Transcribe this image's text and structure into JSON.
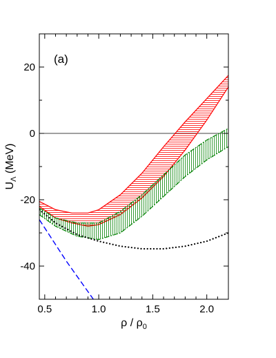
{
  "chart_data": {
    "type": "line",
    "panel_label": "(a)",
    "xlabel_main": "ρ / ρ",
    "xlabel_sub": "0",
    "ylabel_main": "U",
    "ylabel_sub": "Λ",
    "ylabel_unit": " (MeV)",
    "xlim": [
      0.45,
      2.2
    ],
    "ylim": [
      -50,
      30
    ],
    "x_ticks": [
      0.5,
      1.0,
      1.5,
      2.0
    ],
    "x_tick_labels": [
      "0.5",
      "1.0",
      "1.5",
      "2.0"
    ],
    "y_ticks": [
      -40,
      -20,
      0,
      20
    ],
    "y_tick_labels": [
      "-40",
      "-20",
      "0",
      "20"
    ],
    "zero_line": 0,
    "bands": [
      {
        "style": "red-hatched",
        "color": "#ff0000",
        "x": [
          0.45,
          0.6,
          0.75,
          0.9,
          1.0,
          1.2,
          1.4,
          1.6,
          1.8,
          2.0,
          2.2
        ],
        "upper": [
          -20.5,
          -23.0,
          -24.0,
          -24.0,
          -23.0,
          -18.5,
          -12.0,
          -4.0,
          3.5,
          10.5,
          17.5
        ],
        "lower": [
          -22.0,
          -25.5,
          -27.0,
          -28.0,
          -27.5,
          -24.5,
          -19.5,
          -13.0,
          -5.0,
          4.0,
          14.0
        ]
      },
      {
        "style": "green-hatched",
        "color": "#008000",
        "x": [
          0.45,
          0.6,
          0.8,
          1.0,
          1.2,
          1.4,
          1.6,
          1.8,
          2.0,
          2.2
        ],
        "upper": [
          -22.5,
          -25.5,
          -27.0,
          -27.0,
          -23.5,
          -18.5,
          -12.5,
          -6.5,
          -2.0,
          1.5
        ],
        "lower": [
          -24.5,
          -28.0,
          -31.0,
          -32.0,
          -30.0,
          -25.0,
          -19.0,
          -13.0,
          -8.0,
          -4.0
        ]
      }
    ],
    "series": [
      {
        "style": "dotted",
        "color": "#000000",
        "x": [
          0.45,
          0.6,
          0.8,
          1.0,
          1.2,
          1.4,
          1.6,
          1.8,
          2.0,
          2.2
        ],
        "y": [
          -23.0,
          -27.0,
          -30.5,
          -32.5,
          -34.0,
          -34.8,
          -34.8,
          -34.0,
          -32.5,
          -30.0
        ]
      },
      {
        "style": "dashed",
        "color": "#0000ff",
        "x": [
          0.45,
          0.7,
          0.95
        ],
        "y": [
          -26.0,
          -38.5,
          -50.0
        ]
      }
    ]
  }
}
